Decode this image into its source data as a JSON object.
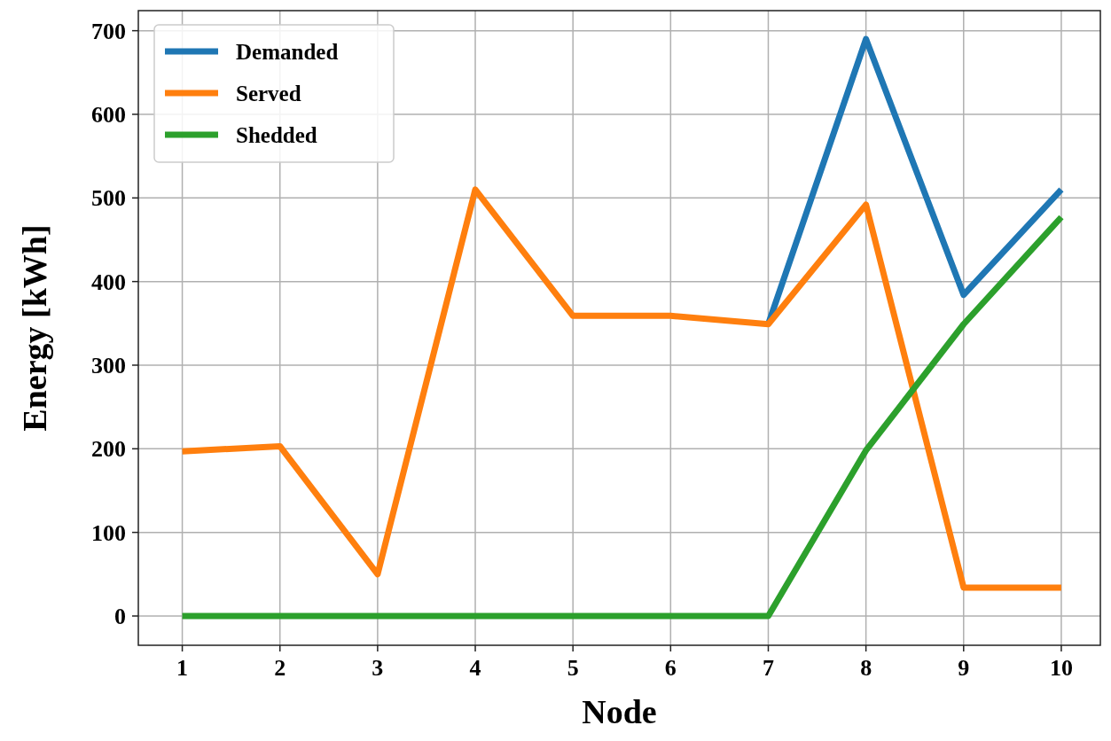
{
  "chart_data": {
    "type": "line",
    "xlabel": "Node",
    "ylabel": "Energy [kWh]",
    "x": [
      1,
      2,
      3,
      4,
      5,
      6,
      7,
      8,
      9,
      10
    ],
    "series": [
      {
        "name": "Demanded",
        "color": "#1f77b4",
        "values": [
          null,
          null,
          null,
          null,
          null,
          null,
          349,
          690,
          384,
          510
        ]
      },
      {
        "name": "Served",
        "color": "#ff7f0e",
        "values": [
          197,
          203,
          50,
          510,
          359,
          359,
          349,
          492,
          34,
          34
        ]
      },
      {
        "name": "Shedded",
        "color": "#2ca02c",
        "values": [
          0,
          0,
          0,
          0,
          0,
          0,
          0,
          198,
          349,
          477
        ]
      }
    ],
    "xlim": [
      0.55,
      10.4
    ],
    "xticks": [
      1,
      2,
      3,
      4,
      5,
      6,
      7,
      8,
      9,
      10
    ],
    "ylim": [
      -35,
      724
    ],
    "yticks": [
      0,
      100,
      200,
      300,
      400,
      500,
      600,
      700
    ],
    "grid": true,
    "legend": "top left",
    "marker": "none",
    "line_style": "solid"
  }
}
